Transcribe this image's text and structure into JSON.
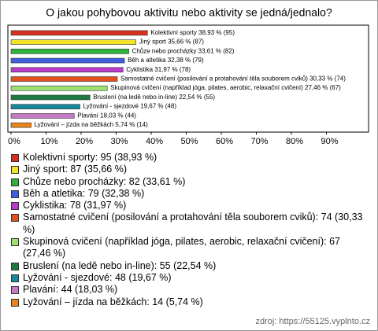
{
  "chart_data": {
    "type": "bar",
    "orientation": "horizontal",
    "title": "O jakou pohybovou aktivitu nebo aktivity se jedná/jednalo?",
    "categories": [
      "Kolektivní sporty",
      "Jiný sport",
      "Chůze nebo procházky",
      "Běh a atletika",
      "Cyklistika",
      "Samostatné cvičení (posilování a protahování těla souborem cviků)",
      "Skupinová cvičení (například jóga, pilates, aerobic, relaxační cvičení)",
      "Bruslení (na ledě nebo in-line)",
      "Lyžování - sjezdové",
      "Plavání",
      "Lyžování – jízda na běžkách"
    ],
    "values": [
      38.93,
      35.66,
      33.61,
      32.38,
      31.97,
      30.33,
      27.46,
      22.54,
      19.67,
      18.03,
      5.74
    ],
    "value_labels": [
      "38,93 % (95)",
      "35,66 % (87)",
      "33,61 % (82)",
      "32,38 % (79)",
      "31,97 % (78)",
      "30,33 % (74)",
      "27,46 % (67)",
      "22,54 % (55)",
      "19,67 % (48)",
      "18,03 % (44)",
      "5,74 % (14)"
    ],
    "colors": [
      "#d8301e",
      "#f2e22a",
      "#2fb33a",
      "#3f5fe0",
      "#b83cc8",
      "#e0501c",
      "#9ee070",
      "#1e7a3e",
      "#15899a",
      "#c47ac4",
      "#e8841c"
    ],
    "legend_labels": [
      "Kolektivní sporty: 95 (38,93 %)",
      "Jiný sport: 87 (35,66 %)",
      "Chůze nebo procházky: 82 (33,61 %)",
      "Běh a atletika: 79 (32,38 %)",
      "Cyklistika: 78 (31,97 %)",
      "Samostatné cvičení (posilování a protahování těla souborem cviků): 74 (30,33 %)",
      "Skupinová cvičení (například jóga, pilates, aerobic, relaxační cvičení): 67 (27,46 %)",
      "Bruslení (na ledě nebo in-line): 55 (22,54 %)",
      "Lyžování - sjezdové: 48 (19,67 %)",
      "Plavání: 44 (18,03 %)",
      "Lyžování – jízda na běžkách: 14 (5,74 %)"
    ],
    "xlim": [
      0,
      100
    ],
    "xticks": [
      {
        "value": 0,
        "label": "0%"
      },
      {
        "value": 10,
        "label": "10%"
      },
      {
        "value": 20,
        "label": "20%"
      },
      {
        "value": 30,
        "label": "30%"
      },
      {
        "value": 40,
        "label": "40%"
      },
      {
        "value": 50,
        "label": "50%"
      },
      {
        "value": 60,
        "label": "60%"
      },
      {
        "value": 70,
        "label": "70%"
      },
      {
        "value": 80,
        "label": "80%"
      },
      {
        "value": 90,
        "label": "90%"
      }
    ],
    "source": "zdroj: https://55125.vyplnto.cz"
  }
}
